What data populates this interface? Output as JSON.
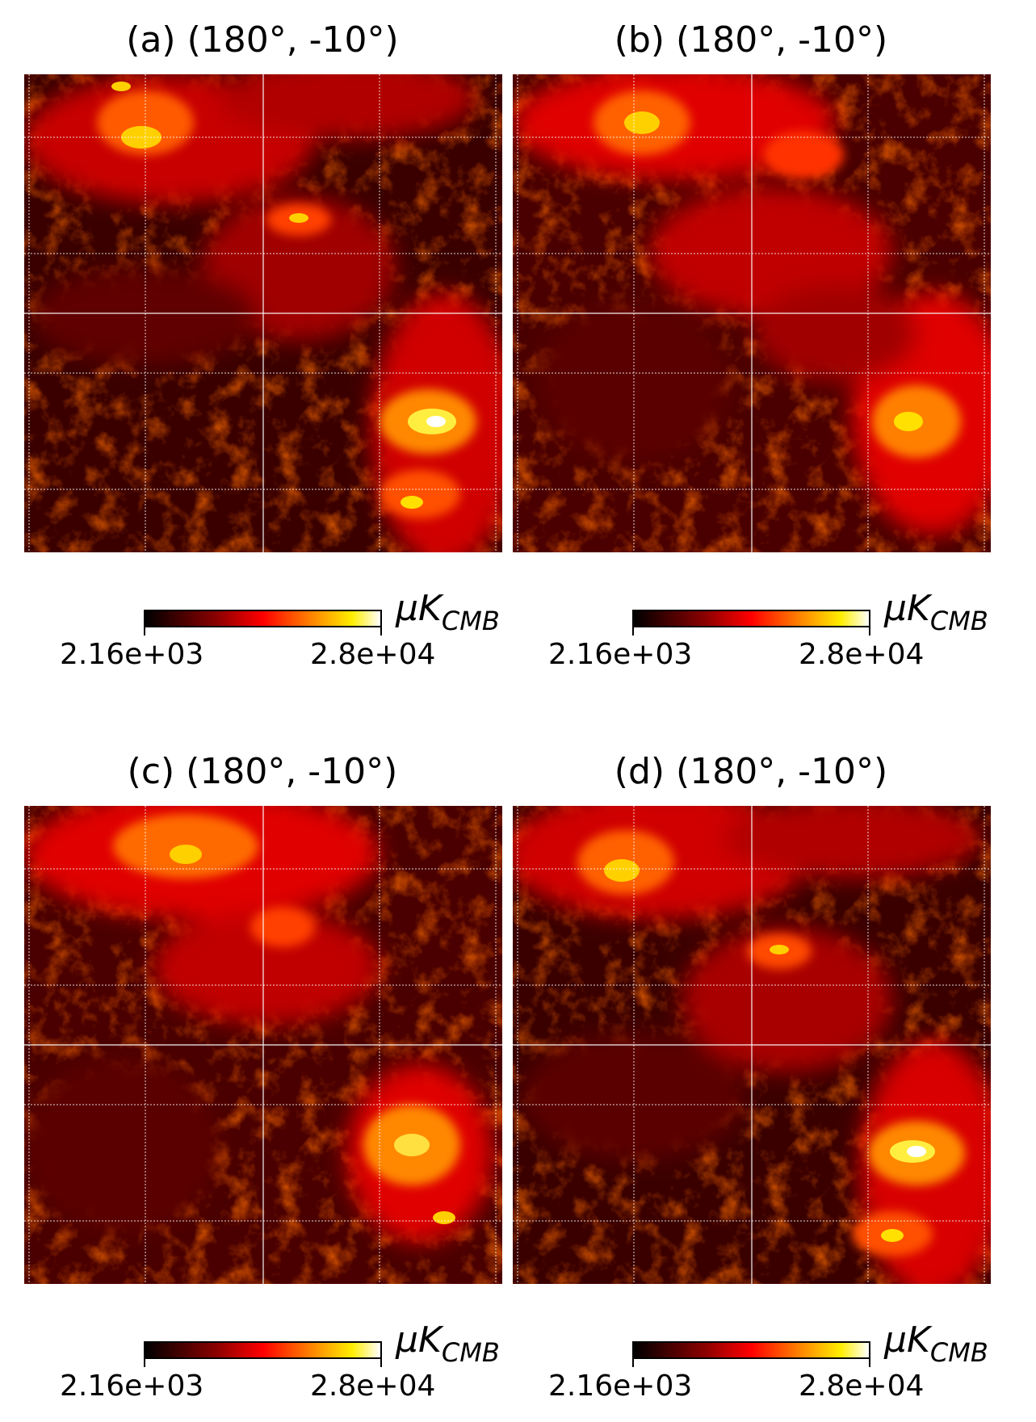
{
  "colormap": {
    "name": "hot",
    "stops": [
      "#000000",
      "#7a0000",
      "#e60000",
      "#ff6a00",
      "#ffd200",
      "#ffffff"
    ]
  },
  "panels": [
    {
      "id": "a",
      "title": "(a) (180°, -10°)",
      "colorbar": {
        "min_label": "2.16e+03",
        "max_label": "2.8e+04",
        "unit_main": "μK",
        "unit_sub": "CMB"
      }
    },
    {
      "id": "b",
      "title": "(b) (180°, -10°)",
      "colorbar": {
        "min_label": "2.16e+03",
        "max_label": "2.8e+04",
        "unit_main": "μK",
        "unit_sub": "CMB"
      }
    },
    {
      "id": "c",
      "title": "(c) (180°, -10°)",
      "colorbar": {
        "min_label": "2.16e+03",
        "max_label": "2.8e+04",
        "unit_main": "μK",
        "unit_sub": "CMB"
      }
    },
    {
      "id": "d",
      "title": "(d) (180°, -10°)",
      "colorbar": {
        "min_label": "2.16e+03",
        "max_label": "2.8e+04",
        "unit_main": "μK",
        "unit_sub": "CMB"
      }
    }
  ]
}
